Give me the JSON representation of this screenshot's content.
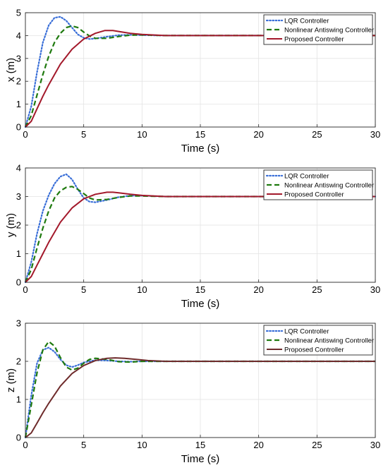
{
  "chart_data": [
    {
      "type": "line",
      "xlabel": "Time (s)",
      "ylabel": "x (m)",
      "xlim": [
        0,
        30
      ],
      "ylim": [
        0,
        5
      ],
      "xticks": [
        "0",
        "5",
        "10",
        "15",
        "20",
        "25",
        "30"
      ],
      "yticks": [
        "0",
        "1",
        "2",
        "3",
        "4",
        "5"
      ],
      "grid": true,
      "legend_position": "top-right",
      "series": [
        {
          "name": "LQR Controller",
          "color": "#3a6fd8",
          "style": "dotted",
          "x": [
            0,
            0.5,
            1,
            1.5,
            2,
            2.5,
            3,
            3.5,
            4,
            4.5,
            5,
            5.5,
            6,
            7,
            8,
            9,
            10,
            12,
            15,
            30
          ],
          "y": [
            0,
            0.9,
            2.4,
            3.7,
            4.45,
            4.78,
            4.82,
            4.65,
            4.35,
            4.05,
            3.9,
            3.85,
            3.87,
            3.95,
            4.02,
            4.03,
            4.02,
            4.0,
            4.0,
            4.0
          ]
        },
        {
          "name": "Nonlinear Antiswing Controller",
          "color": "#1f7a0f",
          "style": "dashed",
          "x": [
            0,
            0.5,
            1,
            1.5,
            2,
            2.5,
            3,
            3.5,
            4,
            4.5,
            5,
            5.5,
            6,
            7,
            8,
            9,
            10,
            12,
            15,
            30
          ],
          "y": [
            0,
            0.5,
            1.4,
            2.3,
            3.1,
            3.7,
            4.1,
            4.35,
            4.42,
            4.35,
            4.15,
            3.98,
            3.88,
            3.88,
            3.96,
            4.02,
            4.03,
            4.0,
            4.0,
            4.0
          ]
        },
        {
          "name": "Proposed Controller",
          "color": "#a3192b",
          "style": "solid",
          "x": [
            0,
            0.5,
            1,
            1.5,
            2,
            3,
            4,
            5,
            6,
            6.8,
            7.5,
            8,
            9,
            10,
            12,
            15,
            30
          ],
          "y": [
            0,
            0.25,
            0.8,
            1.35,
            1.85,
            2.75,
            3.4,
            3.85,
            4.1,
            4.22,
            4.22,
            4.18,
            4.1,
            4.05,
            4.0,
            4.0,
            4.0
          ]
        }
      ]
    },
    {
      "type": "line",
      "xlabel": "Time (s)",
      "ylabel": "y (m)",
      "xlim": [
        0,
        30
      ],
      "ylim": [
        0,
        4
      ],
      "xticks": [
        "0",
        "5",
        "10",
        "15",
        "20",
        "25",
        "30"
      ],
      "yticks": [
        "0",
        "1",
        "2",
        "3",
        "4"
      ],
      "grid": true,
      "legend_position": "top-right",
      "series": [
        {
          "name": "LQR Controller",
          "color": "#3a6fd8",
          "style": "dotted",
          "x": [
            0,
            0.5,
            1,
            1.5,
            2,
            2.5,
            3,
            3.5,
            4,
            4.5,
            5,
            5.5,
            6,
            7,
            8,
            9,
            10,
            12,
            15,
            30
          ],
          "y": [
            0,
            0.7,
            1.7,
            2.5,
            3.05,
            3.45,
            3.7,
            3.78,
            3.6,
            3.25,
            2.95,
            2.82,
            2.8,
            2.88,
            2.98,
            3.03,
            3.03,
            3.0,
            3.0,
            3.0
          ]
        },
        {
          "name": "Nonlinear Antiswing Controller",
          "color": "#1f7a0f",
          "style": "dashed",
          "x": [
            0,
            0.5,
            1,
            1.5,
            2,
            2.5,
            3,
            3.5,
            4,
            4.5,
            5,
            5.5,
            6,
            7,
            8,
            9,
            10,
            12,
            15,
            30
          ],
          "y": [
            0,
            0.45,
            1.2,
            1.9,
            2.5,
            2.95,
            3.2,
            3.32,
            3.35,
            3.25,
            3.1,
            2.95,
            2.88,
            2.9,
            2.97,
            3.02,
            3.02,
            3.0,
            3.0,
            3.0
          ]
        },
        {
          "name": "Proposed Controller",
          "color": "#a3192b",
          "style": "solid",
          "x": [
            0,
            0.5,
            1,
            1.5,
            2,
            3,
            4,
            5,
            6,
            7,
            7.5,
            8,
            9,
            10,
            12,
            15,
            30
          ],
          "y": [
            0,
            0.2,
            0.6,
            1.0,
            1.4,
            2.1,
            2.6,
            2.92,
            3.08,
            3.15,
            3.15,
            3.13,
            3.08,
            3.04,
            3.0,
            3.0,
            3.0
          ]
        }
      ]
    },
    {
      "type": "line",
      "xlabel": "Time (s)",
      "ylabel": "z (m)",
      "xlim": [
        0,
        30
      ],
      "ylim": [
        0,
        3
      ],
      "xticks": [
        "0",
        "5",
        "10",
        "15",
        "20",
        "25",
        "30"
      ],
      "yticks": [
        "0",
        "1",
        "2",
        "3"
      ],
      "grid": true,
      "legend_position": "top-right",
      "series": [
        {
          "name": "LQR Controller",
          "color": "#3a6fd8",
          "style": "dotted",
          "x": [
            0,
            0.5,
            1,
            1.5,
            2,
            2.5,
            3,
            3.5,
            4,
            4.5,
            5,
            6,
            7,
            8,
            9,
            10,
            12,
            15,
            30
          ],
          "y": [
            0,
            1.1,
            1.95,
            2.3,
            2.36,
            2.25,
            2.05,
            1.9,
            1.85,
            1.9,
            1.97,
            2.03,
            2.02,
            2.0,
            1.99,
            2.0,
            2.0,
            2.0,
            2.0
          ]
        },
        {
          "name": "Nonlinear Antiswing Controller",
          "color": "#1f7a0f",
          "style": "dashed",
          "x": [
            0,
            0.5,
            1,
            1.5,
            2,
            2.5,
            3,
            3.5,
            4,
            4.5,
            5,
            5.5,
            6,
            7,
            8,
            9,
            10,
            12,
            15,
            30
          ],
          "y": [
            0,
            0.85,
            1.7,
            2.3,
            2.52,
            2.4,
            2.1,
            1.85,
            1.77,
            1.82,
            1.95,
            2.05,
            2.08,
            2.05,
            1.99,
            1.98,
            2.0,
            2.0,
            2.0,
            2.0
          ]
        },
        {
          "name": "Proposed Controller",
          "color": "#6e2b2b",
          "style": "solid",
          "x": [
            0,
            0.5,
            1,
            1.5,
            2,
            3,
            4,
            5,
            6,
            7,
            7.7,
            8.5,
            9.5,
            10.5,
            12,
            15,
            30
          ],
          "y": [
            0,
            0.12,
            0.38,
            0.65,
            0.9,
            1.35,
            1.68,
            1.89,
            2.02,
            2.08,
            2.09,
            2.08,
            2.05,
            2.02,
            2.0,
            2.0,
            2.0
          ]
        }
      ]
    }
  ]
}
